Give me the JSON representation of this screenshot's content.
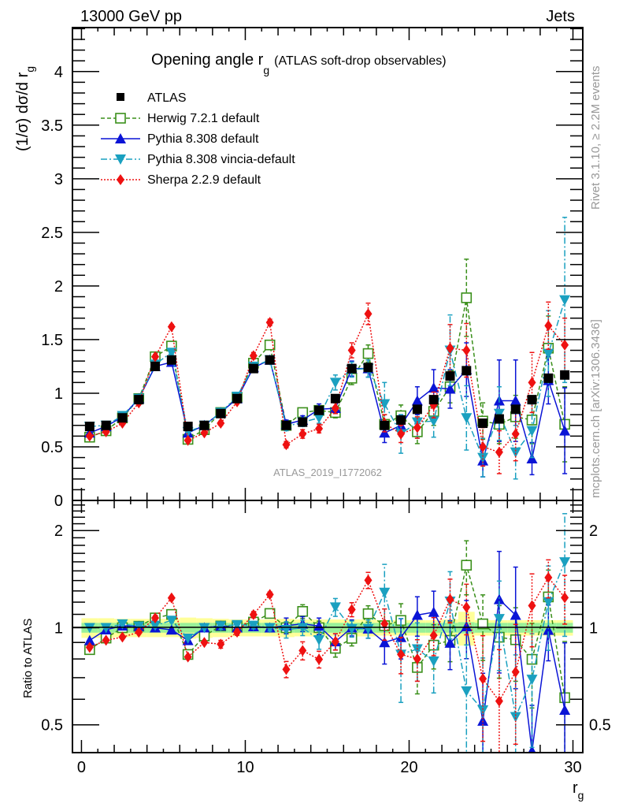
{
  "header": {
    "left": "13000 GeV pp",
    "right": "Jets"
  },
  "side_text": {
    "rivet": "Rivet 3.1.10, ≥ 2.2M events",
    "mcplots": "mcplots.cern.ch [arXiv:1306.3436]"
  },
  "chart_data": {
    "type": "scatter",
    "title": "Opening angle r",
    "title_subscript": "g",
    "title_suffix": "(ATLAS soft-drop observables)",
    "analysis_label": "ATLAS_2019_I1772062",
    "xlabel": "r",
    "xlabel_subscript": "g",
    "ylabel": "(1/σ) dσ/d r",
    "ylabel_subscript": "g",
    "ratio_ylabel": "Ratio to ATLAS",
    "xlim": [
      -0.55,
      30.6
    ],
    "ylim": [
      0,
      4.41
    ],
    "ratio_ylim": [
      0.41,
      2.48
    ],
    "ratio_scale": "log",
    "xticks": [
      "0",
      "10",
      "20",
      "30"
    ],
    "yticks": [
      "0",
      "0.5",
      "1",
      "1.5",
      "2",
      "2.5",
      "3",
      "3.5",
      "4"
    ],
    "ratio_yticks": [
      "0.5",
      "1",
      "2"
    ],
    "legend_position": "top-left",
    "x": [
      0.5,
      1.5,
      2.5,
      3.5,
      4.5,
      5.5,
      6.5,
      7.5,
      8.5,
      9.5,
      10.5,
      11.5,
      12.5,
      13.5,
      14.5,
      15.5,
      16.5,
      17.5,
      18.5,
      19.5,
      20.5,
      21.5,
      22.5,
      23.5,
      24.5,
      25.5,
      26.5,
      27.5,
      28.5,
      29.5
    ],
    "reference": {
      "name": "ATLAS",
      "color": "#000000",
      "marker": "filled-square",
      "values": [
        0.69,
        0.7,
        0.77,
        0.94,
        1.25,
        1.31,
        0.69,
        0.7,
        0.81,
        0.95,
        1.23,
        1.31,
        0.7,
        0.73,
        0.84,
        0.95,
        1.23,
        1.24,
        0.7,
        0.75,
        0.85,
        0.94,
        1.16,
        1.21,
        0.72,
        0.76,
        0.85,
        0.94,
        1.14,
        1.17
      ],
      "band_inner_frac": [
        0.035,
        0.035,
        0.035,
        0.035,
        0.035,
        0.035,
        0.035,
        0.035,
        0.035,
        0.035,
        0.035,
        0.035,
        0.035,
        0.035,
        0.035,
        0.035,
        0.035,
        0.035,
        0.035,
        0.035,
        0.035,
        0.035,
        0.035,
        0.04,
        0.035,
        0.035,
        0.035,
        0.035,
        0.035,
        0.035
      ],
      "band_outer_frac": [
        0.07,
        0.07,
        0.065,
        0.065,
        0.065,
        0.065,
        0.075,
        0.07,
        0.065,
        0.06,
        0.06,
        0.06,
        0.065,
        0.06,
        0.06,
        0.06,
        0.06,
        0.06,
        0.055,
        0.055,
        0.055,
        0.055,
        0.06,
        0.12,
        0.055,
        0.055,
        0.055,
        0.055,
        0.055,
        0.055
      ]
    },
    "series": [
      {
        "name": "Herwig 7.2.1 default",
        "color": "#3a8f1a",
        "marker": "open-square",
        "line": "dashed",
        "values": [
          0.59,
          0.65,
          0.77,
          0.95,
          1.34,
          1.44,
          0.57,
          0.66,
          0.82,
          0.96,
          1.28,
          1.45,
          0.7,
          0.82,
          0.84,
          0.82,
          1.14,
          1.37,
          0.71,
          0.79,
          0.64,
          0.83,
          1.06,
          1.89,
          0.74,
          0.71,
          0.78,
          0.75,
          1.42,
          0.71
        ],
        "errors": [
          0.01,
          0.01,
          0.01,
          0.01,
          0.02,
          0.02,
          0.01,
          0.01,
          0.02,
          0.02,
          0.03,
          0.03,
          0.03,
          0.04,
          0.04,
          0.05,
          0.06,
          0.08,
          0.09,
          0.1,
          0.11,
          0.13,
          0.15,
          0.36,
          0.17,
          0.18,
          0.2,
          0.22,
          0.3,
          0.35
        ]
      },
      {
        "name": "Pythia 8.308 default",
        "color": "#0a14d6",
        "marker": "triangle-up",
        "line": "solid",
        "values": [
          0.63,
          0.69,
          0.78,
          0.95,
          1.25,
          1.29,
          0.63,
          0.7,
          0.82,
          0.95,
          1.24,
          1.31,
          0.71,
          0.75,
          0.85,
          0.86,
          1.23,
          1.23,
          0.63,
          0.7,
          0.93,
          1.05,
          1.04,
          1.22,
          0.37,
          0.93,
          0.93,
          0.39,
          1.12,
          0.65
        ],
        "errors": [
          0.01,
          0.01,
          0.01,
          0.01,
          0.02,
          0.02,
          0.01,
          0.01,
          0.02,
          0.02,
          0.03,
          0.03,
          0.04,
          0.04,
          0.05,
          0.05,
          0.07,
          0.08,
          0.09,
          0.1,
          0.13,
          0.17,
          0.18,
          0.25,
          0.15,
          0.38,
          0.38,
          0.15,
          0.22,
          0.4
        ]
      },
      {
        "name": "Pythia 8.308 vincia-default",
        "color": "#1aa0c0",
        "marker": "triangle-down",
        "line": "dashdot",
        "values": [
          0.69,
          0.7,
          0.79,
          0.95,
          1.27,
          1.38,
          0.64,
          0.7,
          0.82,
          0.97,
          1.25,
          1.31,
          0.69,
          0.73,
          0.77,
          1.1,
          1.22,
          1.23,
          0.9,
          0.62,
          0.73,
          0.74,
          1.4,
          0.77,
          0.4,
          0.81,
          0.45,
          0.65,
          1.37,
          1.87
        ],
        "errors": [
          0.01,
          0.01,
          0.01,
          0.01,
          0.02,
          0.02,
          0.01,
          0.01,
          0.02,
          0.02,
          0.03,
          0.03,
          0.04,
          0.04,
          0.05,
          0.07,
          0.07,
          0.08,
          0.2,
          0.18,
          0.15,
          0.15,
          0.33,
          0.3,
          0.18,
          0.25,
          0.25,
          0.25,
          0.4,
          0.77
        ]
      },
      {
        "name": "Sherpa 2.2.9 default",
        "color": "#ee1111",
        "marker": "diamond",
        "line": "dotted",
        "values": [
          0.6,
          0.64,
          0.72,
          0.91,
          1.34,
          1.62,
          0.56,
          0.63,
          0.72,
          0.92,
          1.35,
          1.66,
          0.52,
          0.62,
          0.67,
          0.86,
          1.4,
          1.74,
          0.72,
          0.62,
          0.68,
          0.89,
          1.42,
          1.4,
          0.5,
          0.45,
          0.62,
          1.1,
          1.63,
          1.45
        ],
        "errors": [
          0.01,
          0.01,
          0.01,
          0.01,
          0.02,
          0.02,
          0.01,
          0.01,
          0.02,
          0.02,
          0.03,
          0.03,
          0.03,
          0.04,
          0.04,
          0.05,
          0.07,
          0.1,
          0.08,
          0.08,
          0.1,
          0.12,
          0.22,
          0.25,
          0.18,
          0.2,
          0.25,
          0.28,
          0.22,
          0.25
        ]
      }
    ]
  }
}
